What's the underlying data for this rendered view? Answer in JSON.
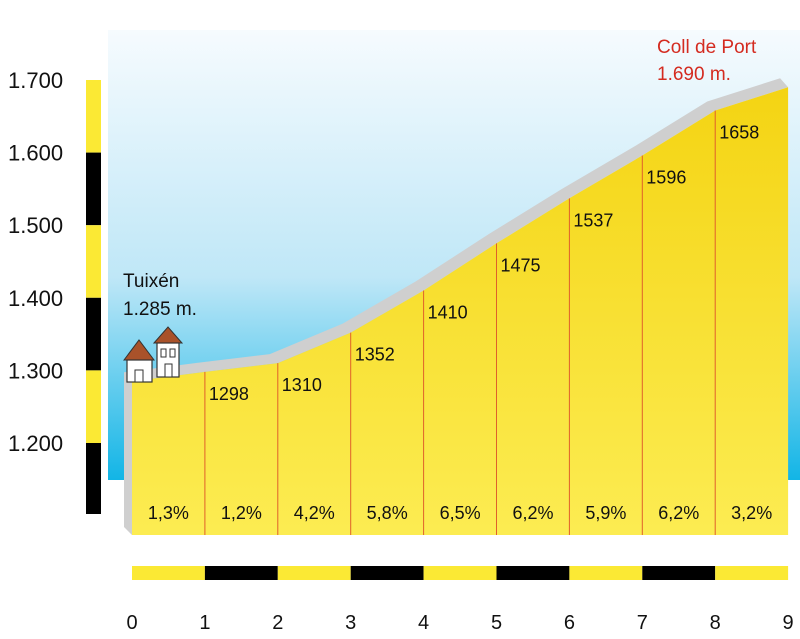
{
  "chart_data": {
    "type": "area",
    "title": "",
    "xlabel": "",
    "ylabel": "",
    "x_ticks": [
      "0",
      "1",
      "2",
      "3",
      "4",
      "5",
      "6",
      "7",
      "8",
      "9"
    ],
    "y_ticks": [
      "1.200",
      "1.300",
      "1.400",
      "1.500",
      "1.600",
      "1.700"
    ],
    "ylim": [
      1150,
      1700
    ],
    "xlim": [
      0,
      9
    ],
    "x": [
      0,
      1,
      2,
      3,
      4,
      5,
      6,
      7,
      8,
      9
    ],
    "elevation": [
      1285,
      1298,
      1310,
      1352,
      1410,
      1475,
      1537,
      1596,
      1658,
      1690
    ],
    "km_labels": [
      "1298",
      "1310",
      "1352",
      "1410",
      "1475",
      "1537",
      "1596",
      "1658"
    ],
    "gradients": [
      "1,3%",
      "1,2%",
      "4,2%",
      "5,8%",
      "6,5%",
      "6,2%",
      "5,9%",
      "6,2%",
      "3,2%"
    ],
    "start": {
      "name": "Tuixén",
      "altitude": "1.285 m."
    },
    "summit": {
      "name": "Coll de Port",
      "altitude": "1.690 m."
    },
    "colors": {
      "fill": "#f2cf12",
      "fill_light": "#fbe94a",
      "segment_line": "#e0602a",
      "road": "#c9c9c9",
      "sky_top": "#f4fafd",
      "sky_bottom": "#10b4e6",
      "scale_yellow": "#fbe934",
      "scale_black": "#000000",
      "summit_text": "#d42b20"
    }
  }
}
